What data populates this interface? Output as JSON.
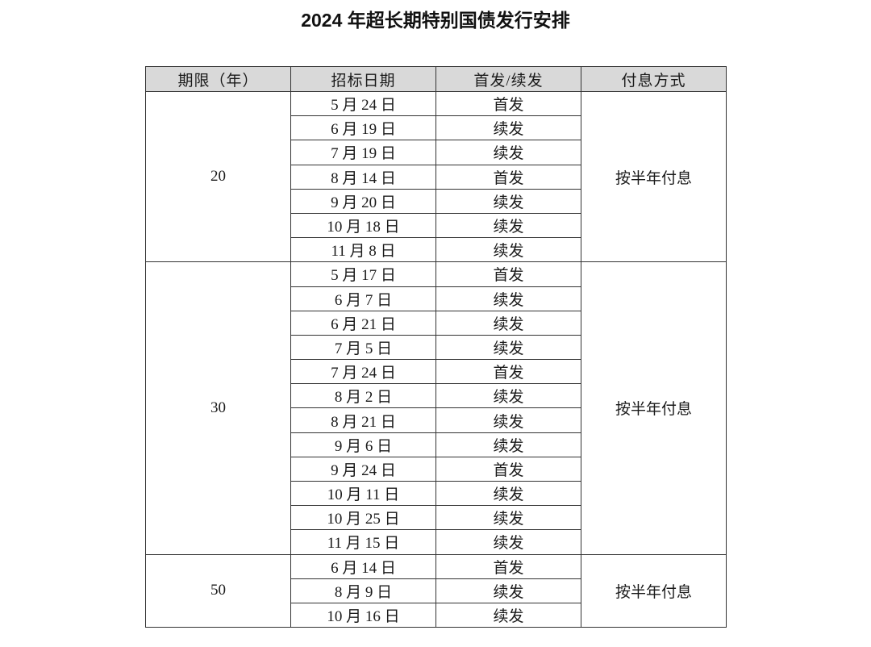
{
  "title": "2024 年超长期特别国债发行安排",
  "headers": [
    "期限（年）",
    "招标日期",
    "首发/续发",
    "付息方式"
  ],
  "groups": [
    {
      "term": "20",
      "payment": "按半年付息",
      "rows": [
        {
          "date": "5 月 24 日",
          "type": "首发"
        },
        {
          "date": "6 月 19 日",
          "type": "续发"
        },
        {
          "date": "7 月 19 日",
          "type": "续发"
        },
        {
          "date": "8 月 14 日",
          "type": "首发"
        },
        {
          "date": "9 月 20 日",
          "type": "续发"
        },
        {
          "date": "10 月 18 日",
          "type": "续发"
        },
        {
          "date": "11 月 8 日",
          "type": "续发"
        }
      ]
    },
    {
      "term": "30",
      "payment": "按半年付息",
      "rows": [
        {
          "date": "5 月 17 日",
          "type": "首发"
        },
        {
          "date": "6 月 7 日",
          "type": "续发"
        },
        {
          "date": "6 月 21 日",
          "type": "续发"
        },
        {
          "date": "7 月 5 日",
          "type": "续发"
        },
        {
          "date": "7 月 24 日",
          "type": "首发"
        },
        {
          "date": "8 月 2 日",
          "type": "续发"
        },
        {
          "date": "8 月 21 日",
          "type": "续发"
        },
        {
          "date": "9 月 6 日",
          "type": "续发"
        },
        {
          "date": "9 月 24 日",
          "type": "首发"
        },
        {
          "date": "10 月 11 日",
          "type": "续发"
        },
        {
          "date": "10 月 25 日",
          "type": "续发"
        },
        {
          "date": "11 月 15 日",
          "type": "续发"
        }
      ]
    },
    {
      "term": "50",
      "payment": "按半年付息",
      "rows": [
        {
          "date": "6 月 14 日",
          "type": "首发"
        },
        {
          "date": "8 月 9 日",
          "type": "续发"
        },
        {
          "date": "10 月 16 日",
          "type": "续发"
        }
      ]
    }
  ]
}
